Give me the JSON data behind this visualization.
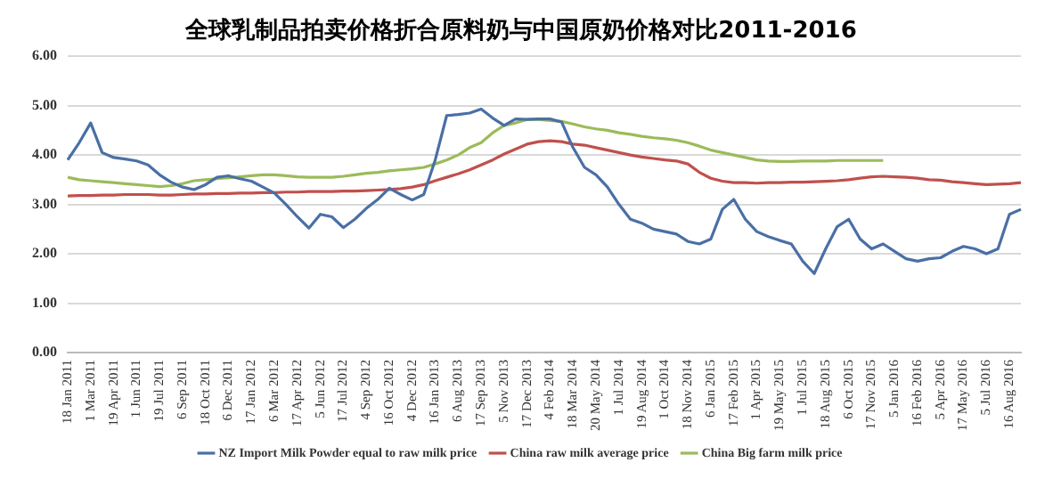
{
  "chart_data": {
    "type": "line",
    "title": "全球乳制品拍卖价格折合原料奶与中国原奶价格对比2011-2016",
    "categories": [
      "18 Jan 2011",
      null,
      "1 Mar 2011",
      null,
      "19 Apr 2011",
      null,
      "1 Jun 2011",
      null,
      "19 Jul 2011",
      null,
      "6 Sep 2011",
      null,
      "18 Oct 2011",
      null,
      "6 Dec 2011",
      null,
      "17 Jan 2012",
      null,
      "6 Mar 2012",
      null,
      "17 Apr 2012",
      null,
      "5 Jun 2012",
      null,
      "17 Jul 2012",
      null,
      "4 Sep 2012",
      null,
      "16 Oct 2012",
      null,
      "4 Dec 2012",
      null,
      "16 Jan 2013",
      null,
      "6 Aug 2013",
      null,
      "17 Sep 2013",
      null,
      "5 Nov 2013",
      null,
      "17 Dec 2013",
      null,
      "4 Feb 2014",
      null,
      "18 Mar 2014",
      null,
      "20 May 2014",
      null,
      "1 Jul 2014",
      null,
      "19 Aug 2014",
      null,
      "1 Oct 2014",
      null,
      "18 Nov 2014",
      null,
      "6 Jan 2015",
      null,
      "17 Feb 2015",
      null,
      "1 Apr 2015",
      null,
      "19 May 2015",
      null,
      "1 Jul 2015",
      null,
      "18 Aug 2015",
      null,
      "6 Oct 2015",
      null,
      "17 Nov 2015",
      null,
      "5 Jan 2016",
      null,
      "16 Feb 2016",
      null,
      "5 Apr 2016",
      null,
      "17 May 2016",
      null,
      "5 Jul 2016",
      null,
      "16 Aug 2016",
      null
    ],
    "series": [
      {
        "name": "NZ Import Milk Powder equal to raw milk price",
        "color": "#4a6fa5",
        "values": [
          3.9,
          4.25,
          4.65,
          4.05,
          3.95,
          3.92,
          3.88,
          3.8,
          3.6,
          3.45,
          3.35,
          3.3,
          3.4,
          3.55,
          3.58,
          3.52,
          3.47,
          3.35,
          3.23,
          3.0,
          2.75,
          2.52,
          2.8,
          2.75,
          2.53,
          2.7,
          2.92,
          3.1,
          3.33,
          3.2,
          3.09,
          3.2,
          3.9,
          4.8,
          4.82,
          4.85,
          4.93,
          4.75,
          4.6,
          4.73,
          4.72,
          4.73,
          4.73,
          4.67,
          4.15,
          3.75,
          3.6,
          3.35,
          3.0,
          2.7,
          2.62,
          2.5,
          2.45,
          2.4,
          2.25,
          2.2,
          2.3,
          2.9,
          3.1,
          2.7,
          2.45,
          2.35,
          2.27,
          2.2,
          1.85,
          1.6,
          2.1,
          2.55,
          2.7,
          2.3,
          2.1,
          2.2,
          2.05,
          1.9,
          1.85,
          1.9,
          1.92,
          2.05,
          2.15,
          2.1,
          2.0,
          2.1,
          2.8,
          2.9
        ]
      },
      {
        "name": "China raw milk average price",
        "color": "#c0504d",
        "values": [
          3.17,
          3.18,
          3.18,
          3.19,
          3.19,
          3.2,
          3.2,
          3.2,
          3.19,
          3.19,
          3.2,
          3.21,
          3.21,
          3.22,
          3.22,
          3.23,
          3.23,
          3.24,
          3.24,
          3.25,
          3.25,
          3.26,
          3.26,
          3.26,
          3.27,
          3.27,
          3.28,
          3.29,
          3.3,
          3.32,
          3.35,
          3.4,
          3.48,
          3.55,
          3.62,
          3.7,
          3.8,
          3.9,
          4.02,
          4.12,
          4.22,
          4.27,
          4.29,
          4.27,
          4.22,
          4.2,
          4.15,
          4.1,
          4.05,
          4.0,
          3.96,
          3.93,
          3.9,
          3.88,
          3.82,
          3.65,
          3.53,
          3.47,
          3.44,
          3.44,
          3.43,
          3.44,
          3.44,
          3.45,
          3.45,
          3.46,
          3.47,
          3.48,
          3.5,
          3.53,
          3.56,
          3.57,
          3.56,
          3.55,
          3.53,
          3.5,
          3.49,
          3.46,
          3.44,
          3.42,
          3.4,
          3.41,
          3.42,
          3.44
        ]
      },
      {
        "name": "China Big farm milk price",
        "color": "#9bbb59",
        "values": [
          3.55,
          3.5,
          3.48,
          3.46,
          3.44,
          3.42,
          3.4,
          3.38,
          3.36,
          3.38,
          3.42,
          3.48,
          3.5,
          3.52,
          3.54,
          3.56,
          3.58,
          3.6,
          3.6,
          3.58,
          3.56,
          3.55,
          3.55,
          3.55,
          3.57,
          3.6,
          3.63,
          3.65,
          3.68,
          3.7,
          3.72,
          3.75,
          3.82,
          3.9,
          4.0,
          4.15,
          4.25,
          4.45,
          4.6,
          4.65,
          4.72,
          4.72,
          4.7,
          4.68,
          4.63,
          4.57,
          4.53,
          4.5,
          4.45,
          4.42,
          4.38,
          4.35,
          4.33,
          4.3,
          4.25,
          4.18,
          4.1,
          4.05,
          4.0,
          3.95,
          3.9,
          3.88,
          3.87,
          3.87,
          3.88,
          3.88,
          3.88,
          3.89,
          3.89,
          3.89,
          3.89,
          3.89,
          null,
          null,
          null,
          null,
          null,
          null,
          null,
          null,
          null,
          null,
          null,
          null
        ]
      }
    ],
    "ylim": [
      0,
      6
    ],
    "yticks": [
      {
        "value": 0,
        "label": "0.00"
      },
      {
        "value": 1,
        "label": "1.00"
      },
      {
        "value": 2,
        "label": "2.00"
      },
      {
        "value": 3,
        "label": "3.00"
      },
      {
        "value": 4,
        "label": "4.00"
      },
      {
        "value": 5,
        "label": "5.00"
      },
      {
        "value": 6,
        "label": "6.00"
      }
    ],
    "grid": "y",
    "legend": "bottom",
    "marker": "none",
    "line_style": "solid"
  }
}
